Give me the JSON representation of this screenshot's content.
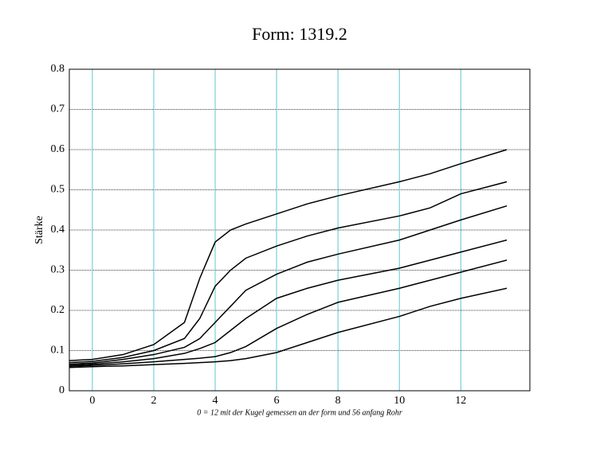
{
  "chart_data": {
    "type": "line",
    "title": "Form:  1319.2",
    "y_label": "Stärke",
    "x_label": "0 = 12 mit der Kugel gemessen an der form und 56 anfang Rohr",
    "x": [
      -0.75,
      0,
      1,
      2,
      3,
      3.5,
      4,
      4.5,
      5,
      6,
      7,
      8,
      10,
      11,
      12,
      13.5
    ],
    "series": [
      {
        "color": "#000000",
        "values": [
          0.075,
          0.078,
          0.09,
          0.115,
          0.17,
          0.28,
          0.37,
          0.4,
          0.415,
          0.44,
          0.465,
          0.485,
          0.52,
          0.54,
          0.565,
          0.6
        ]
      },
      {
        "color": "#000000",
        "values": [
          0.07,
          0.073,
          0.083,
          0.1,
          0.13,
          0.18,
          0.26,
          0.3,
          0.33,
          0.36,
          0.385,
          0.405,
          0.435,
          0.455,
          0.49,
          0.52
        ]
      },
      {
        "color": "#000000",
        "values": [
          0.066,
          0.069,
          0.078,
          0.09,
          0.108,
          0.13,
          0.17,
          0.21,
          0.25,
          0.29,
          0.32,
          0.34,
          0.375,
          0.4,
          0.425,
          0.46
        ]
      },
      {
        "color": "#000000",
        "values": [
          0.063,
          0.066,
          0.072,
          0.08,
          0.093,
          0.105,
          0.12,
          0.15,
          0.18,
          0.23,
          0.255,
          0.275,
          0.305,
          0.325,
          0.345,
          0.375
        ]
      },
      {
        "color": "#000000",
        "values": [
          0.061,
          0.063,
          0.067,
          0.072,
          0.078,
          0.081,
          0.085,
          0.095,
          0.11,
          0.155,
          0.19,
          0.22,
          0.255,
          0.275,
          0.295,
          0.325
        ]
      },
      {
        "color": "#000000",
        "values": [
          0.058,
          0.06,
          0.062,
          0.065,
          0.068,
          0.07,
          0.072,
          0.075,
          0.08,
          0.095,
          0.12,
          0.145,
          0.185,
          0.21,
          0.23,
          0.255
        ]
      }
    ],
    "xlim": [
      -0.75,
      14.25
    ],
    "xticks": [
      0,
      2,
      4,
      6,
      8,
      10,
      12
    ],
    "ylim": [
      0,
      0.8
    ],
    "yticks": [
      0,
      0.1,
      0.2,
      0.3,
      0.4,
      0.5,
      0.6,
      0.7,
      0.8
    ],
    "x_grid_color": "#5fc8d0",
    "y_grid_color": "#000000",
    "grid": true
  }
}
